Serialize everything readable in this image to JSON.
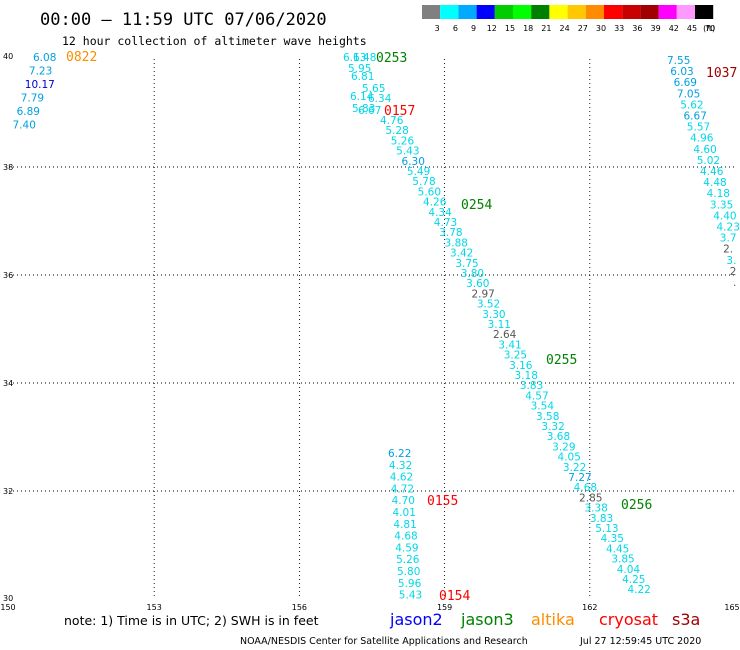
{
  "header": {
    "title": "00:00 – 11:59 UTC 07/06/2020",
    "subtitle": "12 hour collection of altimeter wave heights"
  },
  "legend": {
    "colors": [
      "#808080",
      "#00ffff",
      "#00aaff",
      "#0000ff",
      "#00cc00",
      "#00ff00",
      "#008000",
      "#ffff00",
      "#ffc800",
      "#ff8c00",
      "#ff0000",
      "#c80000",
      "#a00000",
      "#ff00ff",
      "#ff99ff",
      "#000000"
    ],
    "labels": [
      "3",
      "6",
      "9",
      "12",
      "15",
      "18",
      "21",
      "24",
      "27",
      "30",
      "33",
      "36",
      "39",
      "42",
      "45",
      "70"
    ],
    "unit": "(ft)"
  },
  "map": {
    "x_ticks": [
      "150",
      "153",
      "156",
      "159",
      "162",
      "165"
    ],
    "y_ticks": [
      "40",
      "38",
      "36",
      "34",
      "32",
      "30"
    ],
    "lon_range": [
      150,
      165
    ],
    "lat_range": [
      30,
      40
    ],
    "grid": "dotted"
  },
  "passes": [
    {
      "label": "0822",
      "color": "#ff8c00"
    },
    {
      "label": "0253",
      "color": "#008000"
    },
    {
      "label": "1037",
      "color": "#a00000"
    },
    {
      "label": "0157",
      "color": "#ff0000"
    },
    {
      "label": "0254",
      "color": "#008000"
    },
    {
      "label": "0255",
      "color": "#008000"
    },
    {
      "label": "0155",
      "color": "#ff0000"
    },
    {
      "label": "0256",
      "color": "#008000"
    },
    {
      "label": "0154",
      "color": "#ff0000"
    }
  ],
  "tracks": {
    "left": [
      "6.08",
      "7.23",
      "10.17",
      "7.79",
      "6.89",
      "7.40"
    ],
    "diag_top": [
      "6.13",
      "6.48",
      "5.95",
      "6.81",
      "5.65",
      "6.34",
      "6.14",
      "5.83",
      "6.67"
    ],
    "diag_main": [
      "4.76",
      "5.28",
      "5.26",
      "5.43",
      "6.30",
      "5.49",
      "5.78",
      "5.60",
      "4.26",
      "4.34",
      "4.73",
      "3.78",
      "3.88",
      "3.42",
      "3.75",
      "3.80",
      "3.60",
      "2.97",
      "3.52",
      "3.30",
      "3.11",
      "2.64",
      "3.41",
      "3.25",
      "3.16",
      "3.18",
      "3.83",
      "4.57",
      "3.54",
      "3.58",
      "3.32",
      "3.68",
      "3.29",
      "4.05",
      "3.22",
      "7.27",
      "4.68",
      "2.85",
      "3.38",
      "3.83",
      "5.13",
      "4.35",
      "4.45",
      "3.85",
      "4.04",
      "4.25",
      "4.22"
    ],
    "mid": [
      "6.22",
      "4.32",
      "4.62",
      "4.72",
      "4.70",
      "4.01",
      "4.81",
      "4.68",
      "4.59",
      "5.26",
      "5.80",
      "5.96",
      "5.43"
    ],
    "right": [
      "7.55",
      "6.03",
      "6.69",
      "7.05",
      "5.62",
      "6.67",
      "5.57",
      "4.96",
      "4.60",
      "5.02",
      "4.46",
      "4.48",
      "4.18",
      "3.35",
      "4.40",
      "4.23",
      "3.7",
      "2.",
      "3.",
      "2",
      "."
    ]
  },
  "footer": {
    "note": "note:  1) Time is in UTC;  2) SWH is in feet",
    "satellites": [
      {
        "name": "jason2",
        "color": "#0000ff"
      },
      {
        "name": "jason3",
        "color": "#008000"
      },
      {
        "name": "altika",
        "color": "#ff8c00"
      },
      {
        "name": "cryosat",
        "color": "#ff0000"
      },
      {
        "name": "s3a",
        "color": "#a00000"
      }
    ],
    "credit": "NOAA/NESDIS Center for Satellite Applications and Research",
    "timestamp": "Jul 27 12:59:45 UTC 2020"
  }
}
